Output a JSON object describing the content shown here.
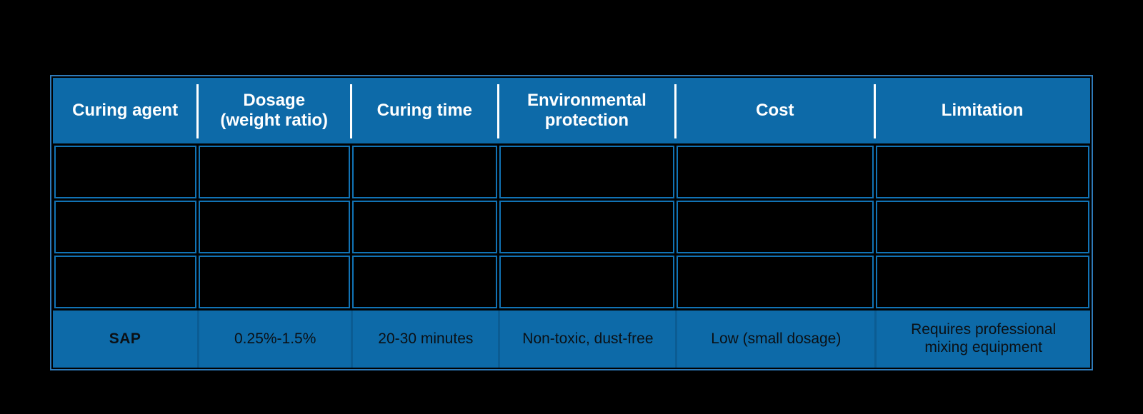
{
  "colors": {
    "background": "#000000",
    "table_fill": "#0D6AA8",
    "cell_border": "#1173B5",
    "outer_border": "#2F7BBA",
    "header_divider": "#FFFFFF",
    "data_row_divider": "#0B5C93",
    "header_text": "#FFFFFF",
    "data_text": "#0B1015"
  },
  "table": {
    "columns": [
      {
        "label": "Curing agent",
        "lines": [
          "Curing agent"
        ]
      },
      {
        "label": "Dosage (weight ratio)",
        "lines": [
          "Dosage",
          "(weight ratio)"
        ]
      },
      {
        "label": "Curing time",
        "lines": [
          "Curing time"
        ]
      },
      {
        "label": "Environmental protection",
        "lines": [
          "Environmental",
          "protection"
        ]
      },
      {
        "label": "Cost",
        "lines": [
          "Cost"
        ]
      },
      {
        "label": "Limitation",
        "lines": [
          "Limitation"
        ]
      }
    ],
    "empty_row_count": 3,
    "data_row": {
      "cells": [
        {
          "text": "SAP",
          "lines": [
            "SAP"
          ]
        },
        {
          "text": "0.25%-1.5%",
          "lines": [
            "0.25%-1.5%"
          ]
        },
        {
          "text": "20-30 minutes",
          "lines": [
            "20-30 minutes"
          ]
        },
        {
          "text": "Non-toxic, dust-free",
          "lines": [
            "Non-toxic, dust-free"
          ]
        },
        {
          "text": "Low (small dosage)",
          "lines": [
            "Low (small dosage)"
          ]
        },
        {
          "text": "Requires professional mixing equipment",
          "lines": [
            "Requires professional",
            "mixing equipment"
          ]
        }
      ]
    }
  },
  "chart_data": {
    "type": "table",
    "columns": [
      "Curing agent",
      "Dosage (weight ratio)",
      "Curing time",
      "Environmental protection",
      "Cost",
      "Limitation"
    ],
    "rows": [
      [
        "",
        "",
        "",
        "",
        "",
        ""
      ],
      [
        "",
        "",
        "",
        "",
        "",
        ""
      ],
      [
        "",
        "",
        "",
        "",
        "",
        ""
      ],
      [
        "SAP",
        "0.25%-1.5%",
        "20-30 minutes",
        "Non-toxic, dust-free",
        "Low (small dosage)",
        "Requires professional mixing equipment"
      ]
    ]
  }
}
